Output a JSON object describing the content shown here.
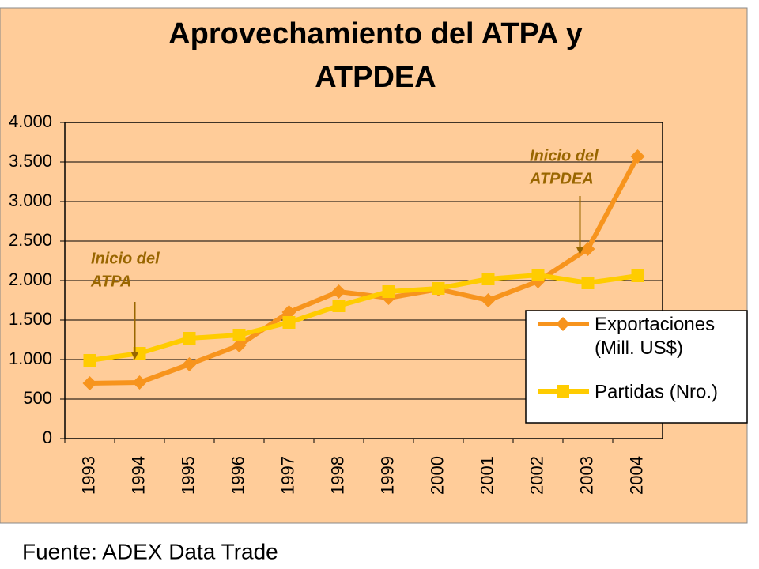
{
  "chart_data": {
    "type": "line",
    "title": "Aprovechamiento del ATPA y ATPDEA",
    "source": "Fuente: ADEX Data Trade",
    "categories": [
      "1993",
      "1994",
      "1995",
      "1996",
      "1997",
      "1998",
      "1999",
      "2000",
      "2001",
      "2002",
      "2003",
      "2004"
    ],
    "series": [
      {
        "name": "Exportaciones (Mill. US$)",
        "color": "#f7941d",
        "marker": "diamond",
        "values": [
          700,
          710,
          940,
          1180,
          1600,
          1860,
          1780,
          1890,
          1750,
          1990,
          2400,
          3570
        ]
      },
      {
        "name": "Partidas (Nro.)",
        "color": "#ffcc00",
        "marker": "square",
        "values": [
          990,
          1080,
          1270,
          1310,
          1470,
          1680,
          1860,
          1900,
          2020,
          2070,
          1970,
          2060
        ]
      }
    ],
    "ylim": [
      0,
      4000
    ],
    "yticks": [
      0,
      500,
      {
        "value": 1000,
        "label": "1.000"
      },
      {
        "value": 1500,
        "label": "1.500"
      },
      {
        "value": 2000,
        "label": "2.000"
      },
      {
        "value": 2500,
        "label": "2.500"
      },
      {
        "value": 3000,
        "label": "3.000"
      },
      {
        "value": 3500,
        "label": "3.500"
      },
      {
        "value": 4000,
        "label": "4.000"
      }
    ],
    "grid": true,
    "legend": "right",
    "annotations": [
      {
        "lines": [
          "Inicio del",
          "ATPA"
        ],
        "category": "1994"
      },
      {
        "lines": [
          "Inicio del",
          "ATPDEA"
        ],
        "category": "2003"
      }
    ]
  }
}
